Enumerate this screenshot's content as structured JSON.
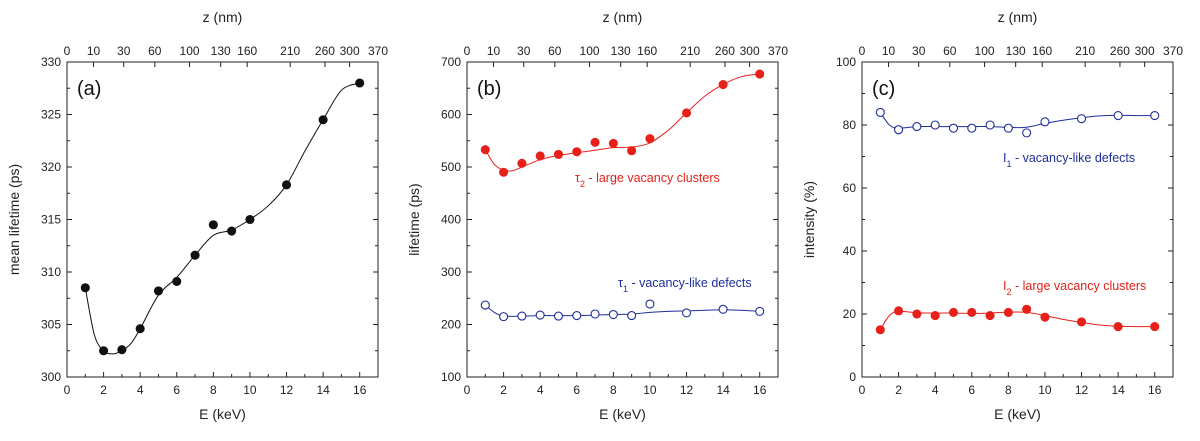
{
  "chart_data": [
    {
      "type": "scatter",
      "panel_label": "(a)",
      "xlabel": "E (keV)",
      "ylabel": "mean lifetime (ps)",
      "top_xlabel": "z (nm)",
      "xlim": [
        0,
        17
      ],
      "ylim": [
        300,
        330
      ],
      "x_ticks": [
        0,
        2,
        4,
        6,
        8,
        10,
        12,
        14,
        16
      ],
      "y_ticks": [
        300,
        305,
        310,
        315,
        320,
        325,
        330
      ],
      "top_ticks": [
        {
          "label": "0",
          "E": 0
        },
        {
          "label": "10",
          "E": 1.45
        },
        {
          "label": "30",
          "E": 3.1
        },
        {
          "label": "60",
          "E": 4.8
        },
        {
          "label": "100",
          "E": 6.7
        },
        {
          "label": "130",
          "E": 8.4
        },
        {
          "label": "160",
          "E": 9.85
        },
        {
          "label": "210",
          "E": 12.2
        },
        {
          "label": "260",
          "E": 14.1
        },
        {
          "label": "300",
          "E": 15.45
        },
        {
          "label": "370",
          "E": 17
        }
      ],
      "series": [
        {
          "color": "#111111",
          "marker": "filled-circle",
          "x": [
            1,
            2,
            3,
            4,
            5,
            6,
            7,
            8,
            9,
            10,
            12,
            14,
            16
          ],
          "y": [
            308.5,
            302.5,
            302.6,
            304.6,
            308.2,
            309.1,
            311.6,
            314.5,
            313.9,
            315.0,
            318.3,
            324.5,
            328.0
          ]
        }
      ],
      "fit": {
        "color": "#111111",
        "x": [
          1,
          1.5,
          2,
          2.5,
          3,
          3.5,
          4,
          5,
          6,
          7,
          8,
          9,
          10,
          11,
          12,
          13,
          14,
          15,
          16
        ],
        "y": [
          308.5,
          304.0,
          302.5,
          302.2,
          302.5,
          303.2,
          304.6,
          307.8,
          309.5,
          311.6,
          313.5,
          314.0,
          315.0,
          316.3,
          318.3,
          321.5,
          324.5,
          327.3,
          328.0
        ]
      }
    },
    {
      "type": "scatter",
      "panel_label": "(b)",
      "xlabel": "E (keV)",
      "ylabel": "lifetime (ps)",
      "top_xlabel": "z (nm)",
      "xlim": [
        0,
        17
      ],
      "ylim": [
        100,
        700
      ],
      "x_ticks": [
        0,
        2,
        4,
        6,
        8,
        10,
        12,
        14,
        16
      ],
      "y_ticks": [
        100,
        200,
        300,
        400,
        500,
        600,
        700
      ],
      "top_ticks": [
        {
          "label": "0",
          "E": 0
        },
        {
          "label": "10",
          "E": 1.45
        },
        {
          "label": "30",
          "E": 3.1
        },
        {
          "label": "60",
          "E": 4.8
        },
        {
          "label": "100",
          "E": 6.7
        },
        {
          "label": "130",
          "E": 8.4
        },
        {
          "label": "160",
          "E": 9.85
        },
        {
          "label": "210",
          "E": 12.2
        },
        {
          "label": "260",
          "E": 14.1
        },
        {
          "label": "300",
          "E": 15.45
        },
        {
          "label": "370",
          "E": 17
        }
      ],
      "series": [
        {
          "color": "#e8201a",
          "marker": "filled-circle",
          "x": [
            1,
            2,
            3,
            4,
            5,
            6,
            7,
            8,
            9,
            10,
            12,
            14,
            16
          ],
          "y": [
            533,
            490,
            507,
            521,
            524,
            529,
            547,
            545,
            531,
            554,
            603,
            657,
            677
          ]
        },
        {
          "color": "#1f2f9a",
          "marker": "open-circle",
          "x": [
            1,
            2,
            3,
            4,
            5,
            6,
            7,
            8,
            9,
            10,
            12,
            14,
            16
          ],
          "y": [
            237,
            215,
            216,
            218,
            216,
            217,
            220,
            219,
            217,
            239,
            222,
            229,
            225
          ]
        }
      ],
      "fit": [
        {
          "color": "#e8201a",
          "x": [
            1,
            1.5,
            2,
            2.5,
            3,
            4,
            5,
            6,
            7,
            8,
            9,
            10,
            11,
            12,
            13,
            14,
            15,
            16
          ],
          "y": [
            533,
            505,
            494,
            493,
            500,
            514,
            522,
            527,
            532,
            537,
            538,
            546,
            570,
            603,
            635,
            657,
            672,
            677
          ]
        },
        {
          "color": "#1f2f9a",
          "x": [
            1,
            1.5,
            2,
            3,
            4,
            5,
            6,
            7,
            8,
            9,
            10,
            11,
            12,
            13,
            14,
            15,
            16
          ],
          "y": [
            237,
            223,
            216,
            216,
            217,
            217,
            217,
            218,
            219,
            220,
            223,
            225,
            226,
            227,
            228,
            227,
            225
          ]
        }
      ],
      "annotations": [
        {
          "greek": "τ",
          "sub": "2",
          "text": " - large vacancy clusters",
          "color": "#e8201a"
        },
        {
          "greek": "τ",
          "sub": "1",
          "text": " - vacancy-like defects",
          "color": "#1f2f9a"
        }
      ]
    },
    {
      "type": "scatter",
      "panel_label": "(c)",
      "xlabel": "E (keV)",
      "ylabel": "intensity (%)",
      "top_xlabel": "z (nm)",
      "xlim": [
        0,
        17
      ],
      "ylim": [
        0,
        100
      ],
      "x_ticks": [
        0,
        2,
        4,
        6,
        8,
        10,
        12,
        14,
        16
      ],
      "y_ticks": [
        0,
        20,
        40,
        60,
        80,
        100
      ],
      "top_ticks": [
        {
          "label": "0",
          "E": 0
        },
        {
          "label": "10",
          "E": 1.45
        },
        {
          "label": "30",
          "E": 3.1
        },
        {
          "label": "60",
          "E": 4.8
        },
        {
          "label": "100",
          "E": 6.7
        },
        {
          "label": "130",
          "E": 8.4
        },
        {
          "label": "160",
          "E": 9.85
        },
        {
          "label": "210",
          "E": 12.2
        },
        {
          "label": "260",
          "E": 14.1
        },
        {
          "label": "300",
          "E": 15.45
        },
        {
          "label": "370",
          "E": 17
        }
      ],
      "series": [
        {
          "color": "#1f2f9a",
          "marker": "open-circle",
          "x": [
            1,
            2,
            3,
            4,
            5,
            6,
            7,
            8,
            9,
            10,
            12,
            14,
            16
          ],
          "y": [
            84,
            78.5,
            79.5,
            80,
            79,
            79,
            80,
            79,
            77.5,
            81,
            82,
            83,
            83
          ]
        },
        {
          "color": "#e8201a",
          "marker": "filled-circle",
          "x": [
            1,
            2,
            3,
            4,
            5,
            6,
            7,
            8,
            9,
            10,
            12,
            14,
            16
          ],
          "y": [
            15,
            21,
            20,
            19.5,
            20.5,
            20.5,
            19.5,
            20.5,
            21.5,
            19,
            17.5,
            16,
            16
          ]
        }
      ],
      "fit": [
        {
          "color": "#1f2f9a",
          "x": [
            1,
            1.5,
            2,
            3,
            4,
            5,
            6,
            7,
            8,
            9,
            10,
            11,
            12,
            13,
            14,
            15,
            16
          ],
          "y": [
            84,
            80,
            79,
            79.5,
            79.5,
            79.5,
            79.5,
            79.5,
            79.2,
            79.3,
            80.5,
            81.5,
            82.3,
            82.9,
            83.1,
            83.0,
            83
          ]
        },
        {
          "color": "#e8201a",
          "x": [
            1,
            1.5,
            2,
            3,
            4,
            5,
            6,
            7,
            8,
            9,
            10,
            11,
            12,
            13,
            14,
            15,
            16
          ],
          "y": [
            15,
            19.5,
            20.8,
            20.4,
            20.3,
            20.3,
            20.2,
            20.3,
            20.6,
            20.5,
            19.5,
            18.3,
            17.3,
            16.5,
            16.1,
            16.0,
            16
          ]
        }
      ],
      "annotations": [
        {
          "greek": "I",
          "sub": "1",
          "text": " - vacancy-like defects",
          "color": "#1f2f9a"
        },
        {
          "greek": "I",
          "sub": "2",
          "text": " - large vacancy clusters",
          "color": "#e8201a"
        }
      ]
    }
  ]
}
